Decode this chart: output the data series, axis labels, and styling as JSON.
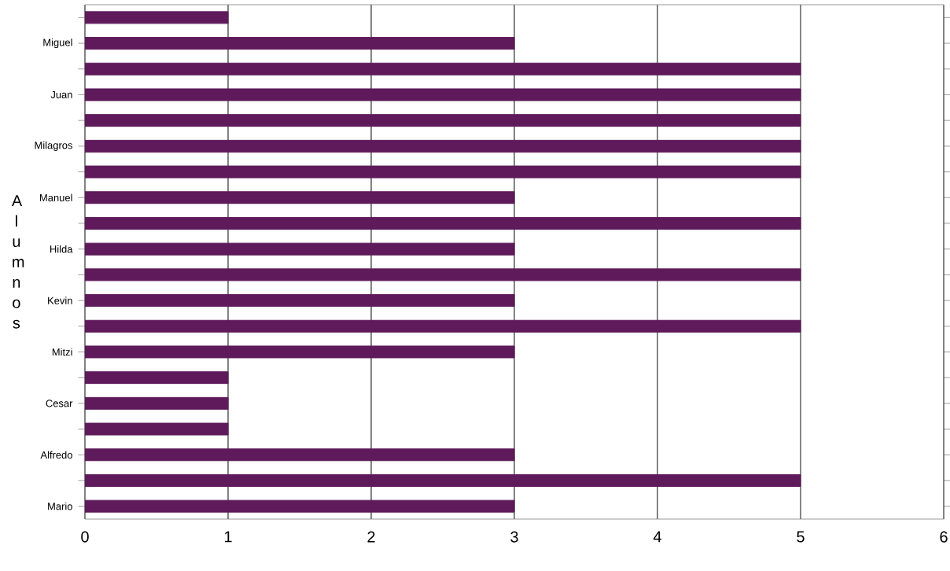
{
  "chart_data": {
    "type": "bar",
    "orientation": "horizontal",
    "ylabel": "A l u m n o s",
    "categories": [
      null,
      "Miguel",
      null,
      "Juan",
      null,
      "Milagros",
      null,
      "Manuel",
      null,
      "Hilda",
      null,
      "Kevin",
      null,
      "Mitzi",
      null,
      "Cesar",
      null,
      "Alfredo",
      null,
      "Mario"
    ],
    "values": [
      1,
      3,
      5,
      5,
      5,
      5,
      5,
      3,
      5,
      3,
      5,
      3,
      5,
      3,
      1,
      1,
      1,
      3,
      5,
      3
    ],
    "color": "#5e1a5a",
    "xlim": [
      0,
      6
    ],
    "xticks": [
      0,
      1,
      2,
      3,
      4,
      5,
      6
    ],
    "grid": "x"
  }
}
